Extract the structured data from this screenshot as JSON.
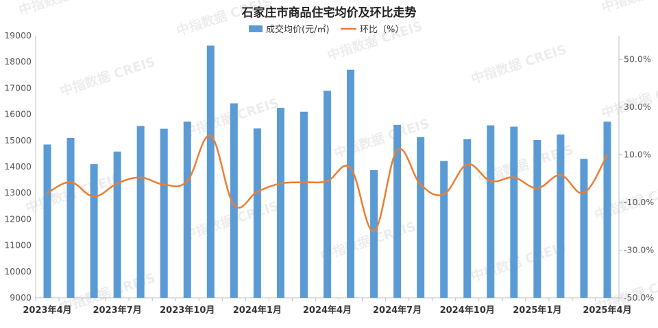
{
  "chart_data": {
    "type": "bar+line",
    "title": "石家庄市商品住宅均价及环比走势",
    "x": [
      "2023-04",
      "2023-05",
      "2023-06",
      "2023-07",
      "2023-08",
      "2023-09",
      "2023-10",
      "2023-11",
      "2023-12",
      "2024-01",
      "2024-02",
      "2024-03",
      "2024-04",
      "2024-05",
      "2024-06",
      "2024-07",
      "2024-08",
      "2024-09",
      "2024-10",
      "2024-11",
      "2024-12",
      "2025-01",
      "2025-02",
      "2025-03",
      "2025-04"
    ],
    "x_tick_labels": [
      "2023年4月",
      "2023年7月",
      "2023年10月",
      "2024年1月",
      "2024年4月",
      "2024年7月",
      "2024年10月",
      "2025年1月",
      "2025年4月"
    ],
    "x_tick_indices": [
      0,
      3,
      6,
      9,
      12,
      15,
      18,
      21,
      24
    ],
    "series": [
      {
        "name": "成交均价(元/㎡)",
        "type": "bar",
        "axis": "left",
        "color": "#5B9BD5",
        "values": [
          14850,
          15100,
          14100,
          14580,
          15550,
          15450,
          15720,
          18620,
          16420,
          15460,
          16250,
          16100,
          16900,
          17700,
          13870,
          15600,
          15130,
          14220,
          15050,
          15580,
          15530,
          15020,
          15230,
          14300,
          15720
        ]
      },
      {
        "name": "环比（%）",
        "type": "line",
        "axis": "right",
        "color": "#ED7D31",
        "values": [
          -6.0,
          -1.5,
          -7.5,
          -2.0,
          0.5,
          -2.5,
          -1.0,
          18.0,
          -11.0,
          -5.5,
          -2.0,
          -1.5,
          -1.0,
          4.5,
          -22.0,
          12.0,
          -2.5,
          -6.5,
          6.0,
          -1.0,
          0.5,
          -4.0,
          1.5,
          -6.0,
          10.0
        ]
      }
    ],
    "y_left": {
      "min": 9000,
      "max": 19000,
      "ticks": [
        9000,
        10000,
        11000,
        12000,
        13000,
        14000,
        15000,
        16000,
        17000,
        18000,
        19000
      ]
    },
    "y_right": {
      "min": -50,
      "max": 60,
      "ticks": [
        -50,
        -30,
        -10,
        10,
        30,
        50
      ],
      "tick_labels": [
        "-50.0%",
        "-30.0%",
        "-10.0%",
        "10.0%",
        "30.0%",
        "50.0%"
      ]
    },
    "legend_position": "top",
    "grid": false
  },
  "watermark": "中指数据 CREIS"
}
